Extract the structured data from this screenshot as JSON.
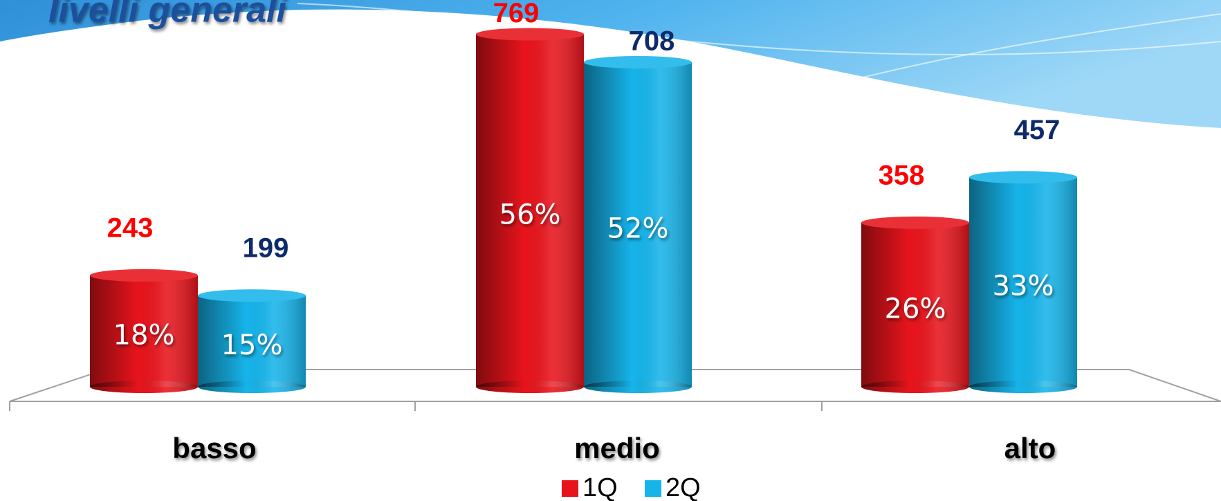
{
  "chart_data": {
    "type": "bar",
    "title": "livelli generali",
    "categories": [
      "basso",
      "medio",
      "alto"
    ],
    "series": [
      {
        "name": "1Q",
        "color": "#e8141c",
        "label_color": "#ff0000",
        "values": [
          243,
          769,
          358
        ],
        "percent_labels": [
          "18%",
          "56%",
          "26%"
        ]
      },
      {
        "name": "2Q",
        "color": "#16b4ea",
        "label_color": "#0d2a6b",
        "values": [
          199,
          708,
          457
        ],
        "percent_labels": [
          "15%",
          "52%",
          "33%"
        ]
      }
    ],
    "ylim": [
      0,
      800
    ]
  }
}
